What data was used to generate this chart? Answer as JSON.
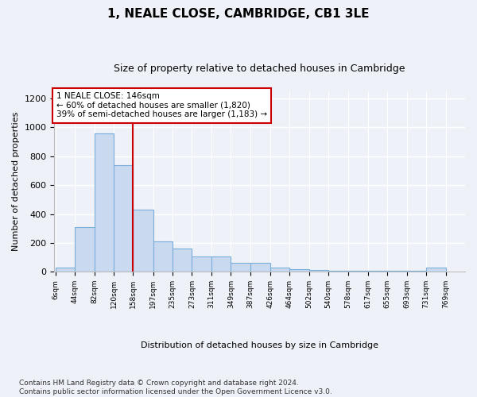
{
  "title": "1, NEALE CLOSE, CAMBRIDGE, CB1 3LE",
  "subtitle": "Size of property relative to detached houses in Cambridge",
  "xlabel": "Distribution of detached houses by size in Cambridge",
  "ylabel": "Number of detached properties",
  "annotation_text_line1": "1 NEALE CLOSE: 146sqm",
  "annotation_text_line2": "← 60% of detached houses are smaller (1,820)",
  "annotation_text_line3": "39% of semi-detached houses are larger (1,183) →",
  "bins": [
    6,
    44,
    82,
    120,
    158,
    197,
    235,
    273,
    311,
    349,
    387,
    426,
    464,
    502,
    540,
    578,
    617,
    655,
    693,
    731,
    769
  ],
  "bar_heights": [
    30,
    310,
    960,
    740,
    430,
    210,
    160,
    105,
    105,
    60,
    60,
    30,
    20,
    15,
    5,
    5,
    5,
    5,
    5,
    30
  ],
  "bar_color": "#c9d9ef",
  "bar_edge_color": "#7aaedb",
  "vline_color": "#cc0000",
  "vline_x": 158,
  "annotation_box_color": "#ffffff",
  "annotation_box_edge_color": "#cc0000",
  "footer_text": "Contains HM Land Registry data © Crown copyright and database right 2024.\nContains public sector information licensed under the Open Government Licence v3.0.",
  "ylim": [
    0,
    1250
  ],
  "yticks": [
    0,
    200,
    400,
    600,
    800,
    1000,
    1200
  ],
  "background_color": "#eef2f8",
  "plot_bg_color": "#eef2f8",
  "title_fontsize": 11,
  "subtitle_fontsize": 9,
  "footer_fontsize": 6.5
}
